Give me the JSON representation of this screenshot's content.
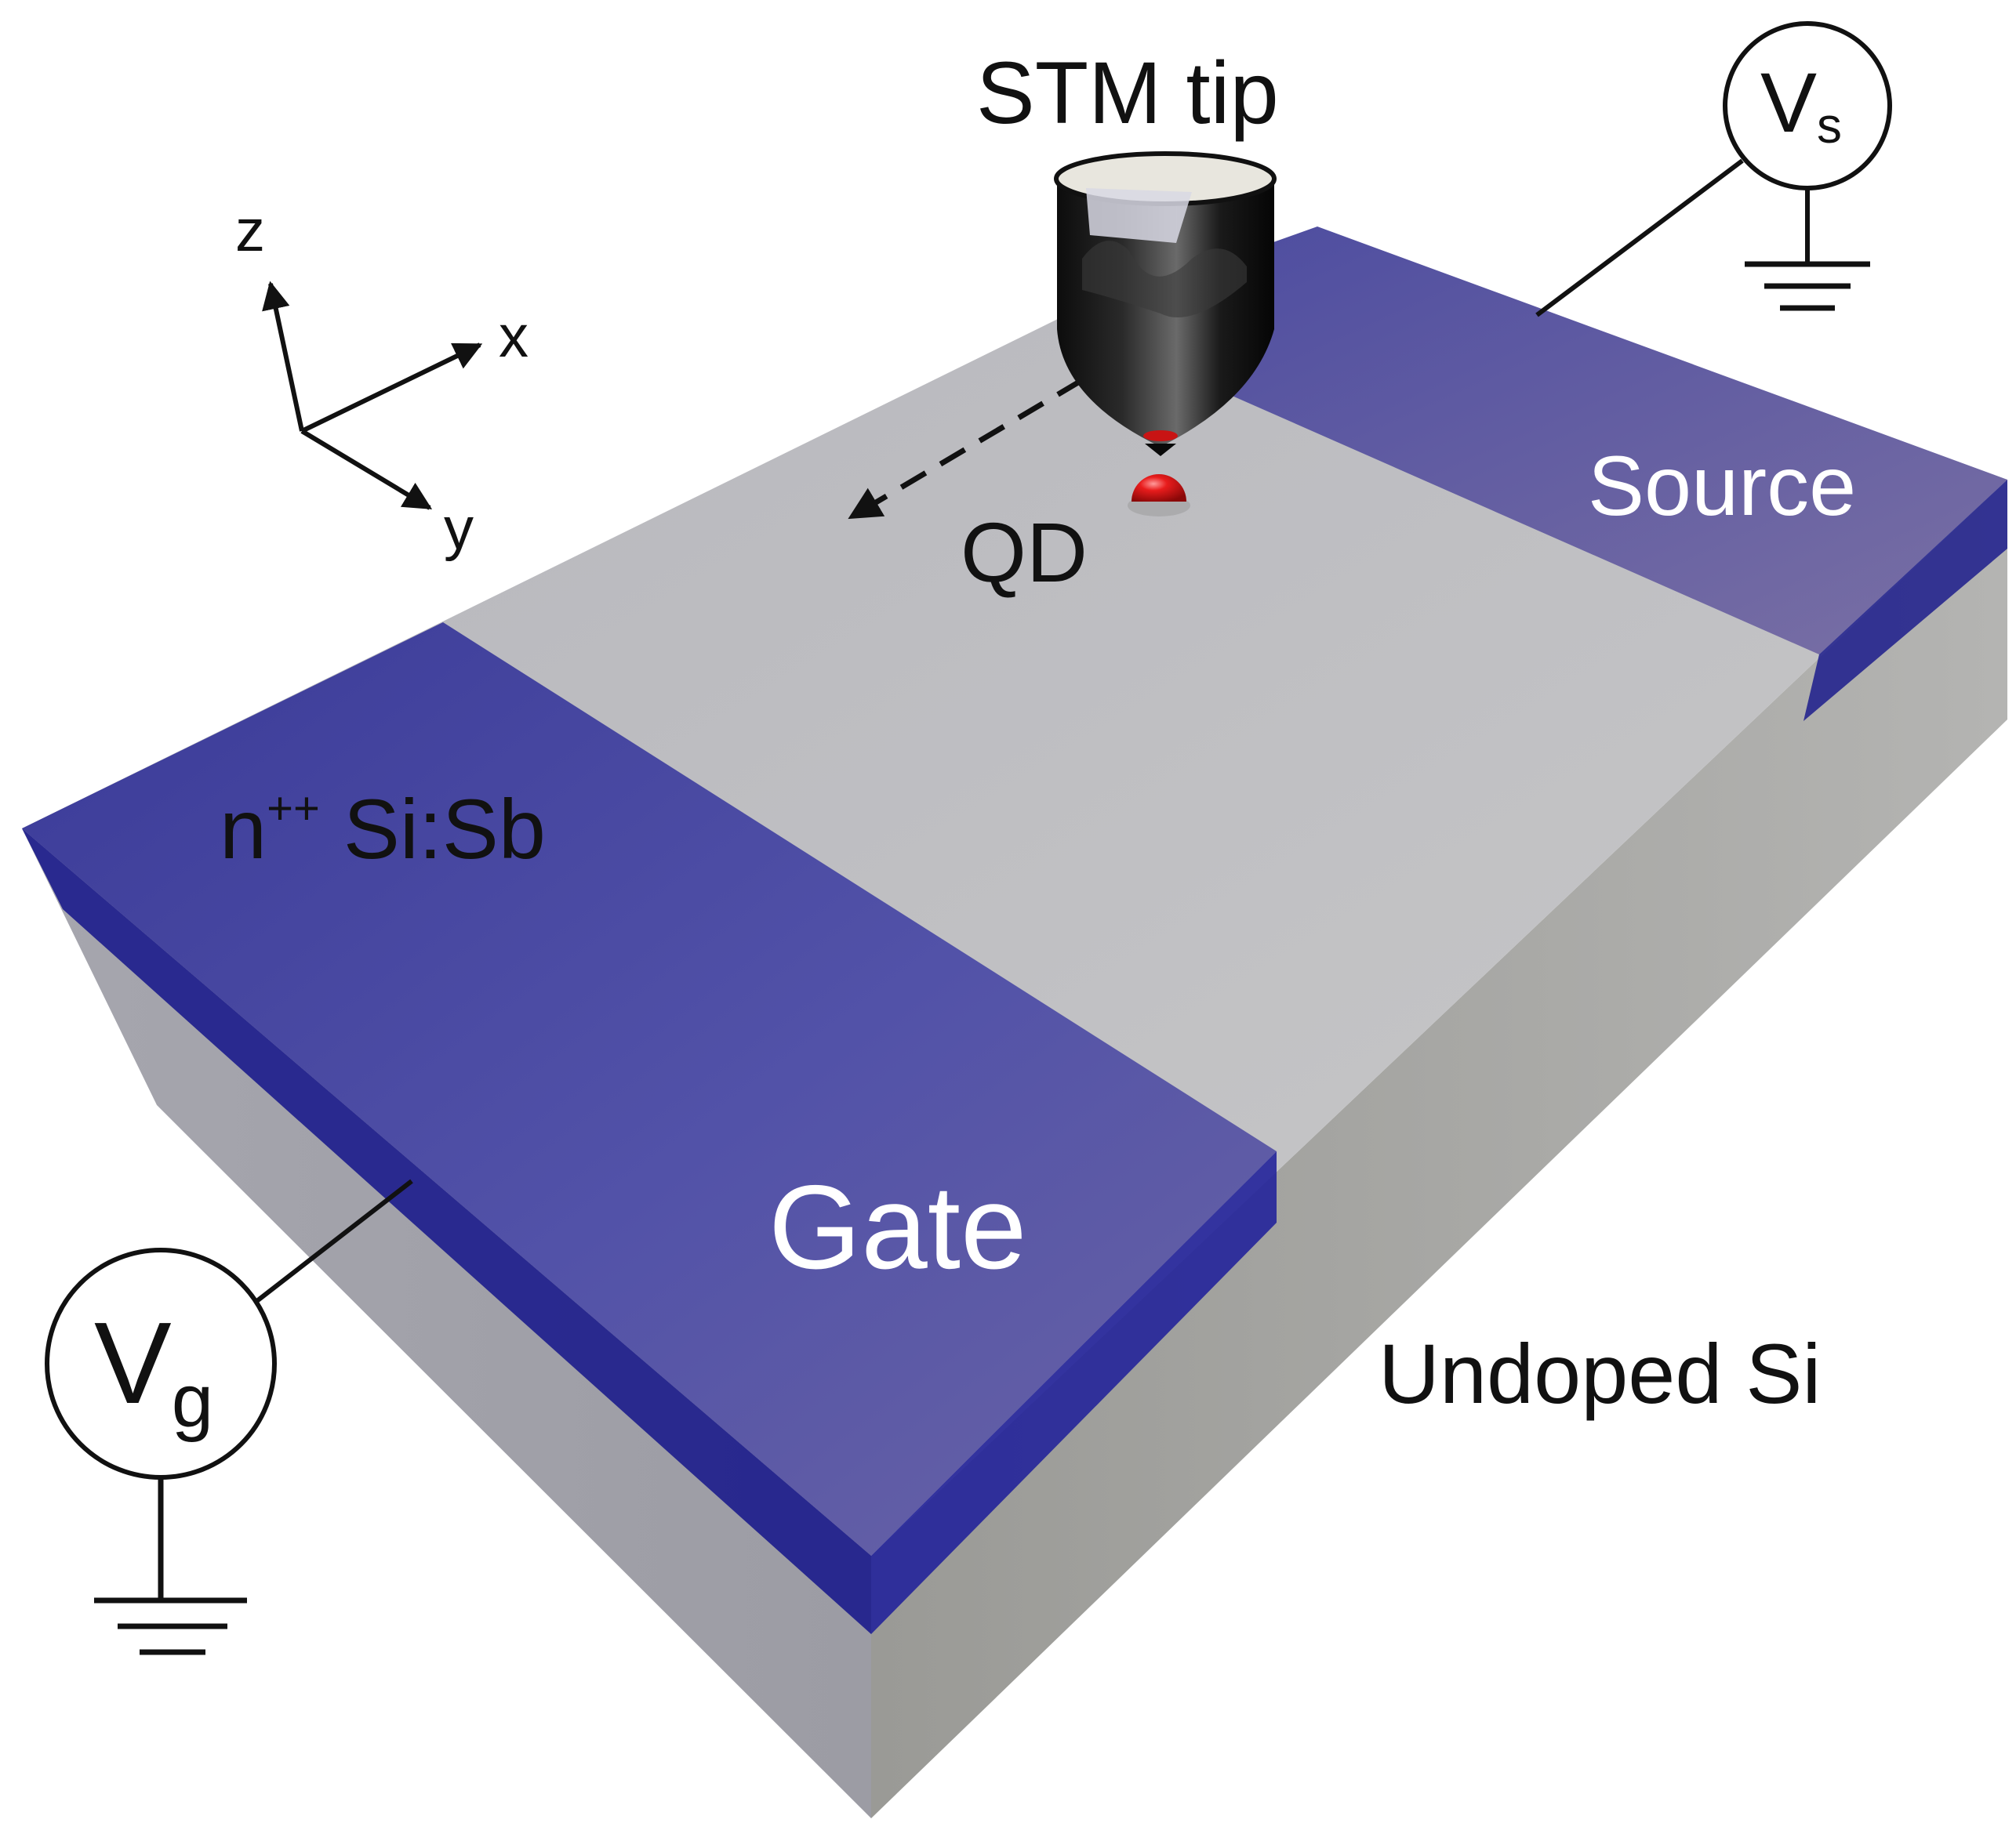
{
  "labels": {
    "stm_tip": "STM tip",
    "qd": "QD",
    "source": "Source",
    "gate": "Gate",
    "undoped_si": "Undoped Si",
    "doping_prefix": "n",
    "doping_superscript": "++",
    "doping_suffix": " Si:Sb"
  },
  "axes": {
    "z": "z",
    "x": "x",
    "y": "y"
  },
  "meters": {
    "source_symbol": "V",
    "source_subscript": "s",
    "gate_symbol": "V",
    "gate_subscript": "g"
  },
  "colors": {
    "doped_blue": "#4a4aa6",
    "doped_edge": "#1c1c8c",
    "undoped_top": "#c4c4c8",
    "undoped_side": "#a2a2a6",
    "quantum_dot": "#e01818",
    "tip": "#1a1a1a"
  }
}
